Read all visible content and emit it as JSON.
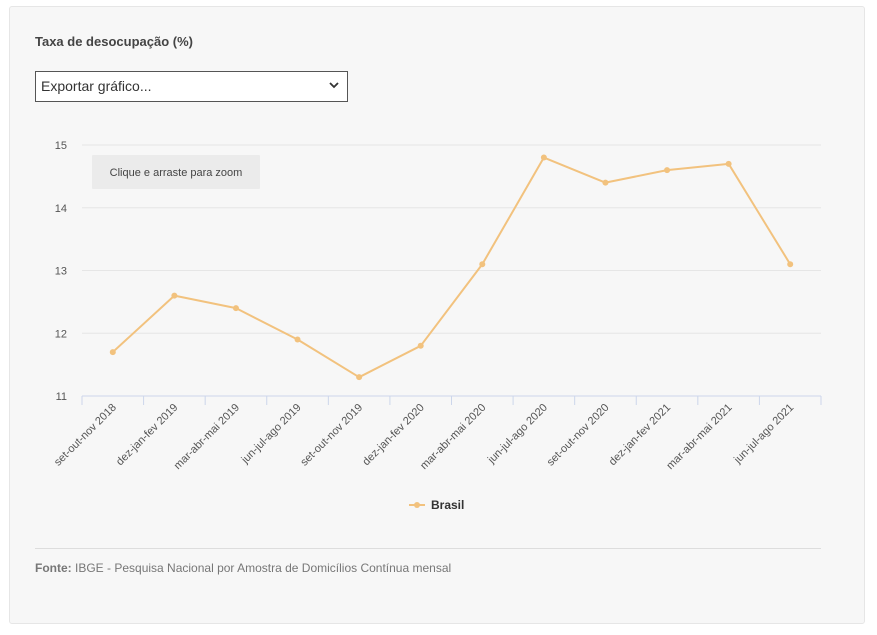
{
  "title": "Taxa de desocupação (%)",
  "export_select": {
    "selected": "Exportar gráfico..."
  },
  "zoom_hint": "Clique e arraste para zoom",
  "source": {
    "label": "Fonte:",
    "text": "IBGE - Pesquisa Nacional por Amostra de Domicílios Contínua mensal"
  },
  "colors": {
    "series": "#f2c27e",
    "grid": "#e6e6e6",
    "axis": "#ccd6eb",
    "text": "#555555"
  },
  "chart_data": {
    "type": "line",
    "title": "Taxa de desocupação (%)",
    "categories": [
      "set-out-nov 2018",
      "dez-jan-fev 2019",
      "mar-abr-mai 2019",
      "jun-jul-ago 2019",
      "set-out-nov 2019",
      "dez-jan-fev 2020",
      "mar-abr-mai 2020",
      "jun-jul-ago 2020",
      "set-out-nov 2020",
      "dez-jan-fev 2021",
      "mar-abr-mai 2021",
      "jun-jul-ago 2021"
    ],
    "series": [
      {
        "name": "Brasil",
        "values": [
          11.7,
          12.6,
          12.4,
          11.9,
          11.3,
          11.8,
          13.1,
          14.8,
          14.4,
          14.6,
          14.7,
          13.1
        ]
      }
    ],
    "yticks": [
      "11",
      "12",
      "13",
      "14",
      "15"
    ],
    "ylim": [
      11,
      15
    ],
    "grid": true,
    "legend_position": "bottom-center"
  }
}
